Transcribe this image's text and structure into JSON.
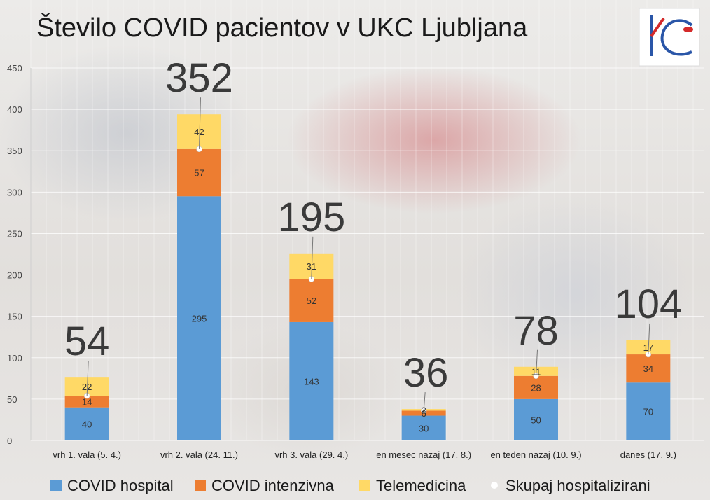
{
  "chart_data": {
    "type": "bar",
    "stacked": true,
    "title": "Število COVID pacientov v UKC Ljubljana",
    "categories": [
      "vrh 1. vala (5. 4.)",
      "vrh 2. vala (24. 11.)",
      "vrh 3. vala (29. 4.)",
      "en mesec nazaj (17. 8.)",
      "en teden nazaj (10. 9.)",
      "danes (17. 9.)"
    ],
    "series": [
      {
        "name": "COVID hospital",
        "color": "#5b9bd5",
        "values": [
          40,
          295,
          143,
          30,
          50,
          70
        ]
      },
      {
        "name": "COVID intenzivna",
        "color": "#ed7d31",
        "values": [
          14,
          57,
          52,
          6,
          28,
          34
        ]
      },
      {
        "name": "Telemedicina",
        "color": "#ffd966",
        "values": [
          22,
          42,
          31,
          2,
          11,
          17
        ]
      }
    ],
    "line_series": {
      "name": "Skupaj hospitalizirani",
      "color": "#ffffff",
      "values": [
        54,
        352,
        195,
        36,
        78,
        104
      ]
    },
    "ylim": [
      0,
      450
    ],
    "yticks": [
      0,
      50,
      100,
      150,
      200,
      250,
      300,
      350,
      400,
      450
    ],
    "xlabel": "",
    "ylabel": "",
    "legend_position": "bottom"
  },
  "logo_text": "KC"
}
